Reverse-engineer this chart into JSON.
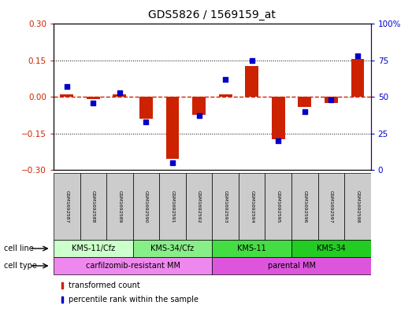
{
  "title": "GDS5826 / 1569159_at",
  "samples": [
    "GSM1692587",
    "GSM1692588",
    "GSM1692589",
    "GSM1692590",
    "GSM1692591",
    "GSM1692592",
    "GSM1692593",
    "GSM1692594",
    "GSM1692595",
    "GSM1692596",
    "GSM1692597",
    "GSM1692598"
  ],
  "transformed_count": [
    0.01,
    -0.01,
    0.01,
    -0.09,
    -0.255,
    -0.075,
    0.01,
    0.125,
    -0.175,
    -0.04,
    -0.025,
    0.155
  ],
  "percentile_rank": [
    57,
    46,
    53,
    33,
    5,
    37,
    62,
    75,
    20,
    40,
    48,
    78
  ],
  "bar_color": "#cc2200",
  "dot_color": "#0000cc",
  "ylim_left": [
    -0.3,
    0.3
  ],
  "ylim_right": [
    0,
    100
  ],
  "yticks_left": [
    -0.3,
    -0.15,
    0.0,
    0.15,
    0.3
  ],
  "yticks_right": [
    0,
    25,
    50,
    75,
    100
  ],
  "hline_color": "#cc2200",
  "cell_line_groups": [
    {
      "label": "KMS-11/Cfz",
      "span": [
        0,
        3
      ],
      "color": "#ccffcc"
    },
    {
      "label": "KMS-34/Cfz",
      "span": [
        3,
        6
      ],
      "color": "#88ee88"
    },
    {
      "label": "KMS-11",
      "span": [
        6,
        9
      ],
      "color": "#44dd44"
    },
    {
      "label": "KMS-34",
      "span": [
        9,
        12
      ],
      "color": "#22cc22"
    }
  ],
  "cell_type_groups": [
    {
      "label": "carfilzomib-resistant MM",
      "span": [
        0,
        6
      ],
      "color": "#ee88ee"
    },
    {
      "label": "parental MM",
      "span": [
        6,
        12
      ],
      "color": "#dd55dd"
    }
  ],
  "sample_box_color": "#cccccc",
  "bar_width": 0.5
}
